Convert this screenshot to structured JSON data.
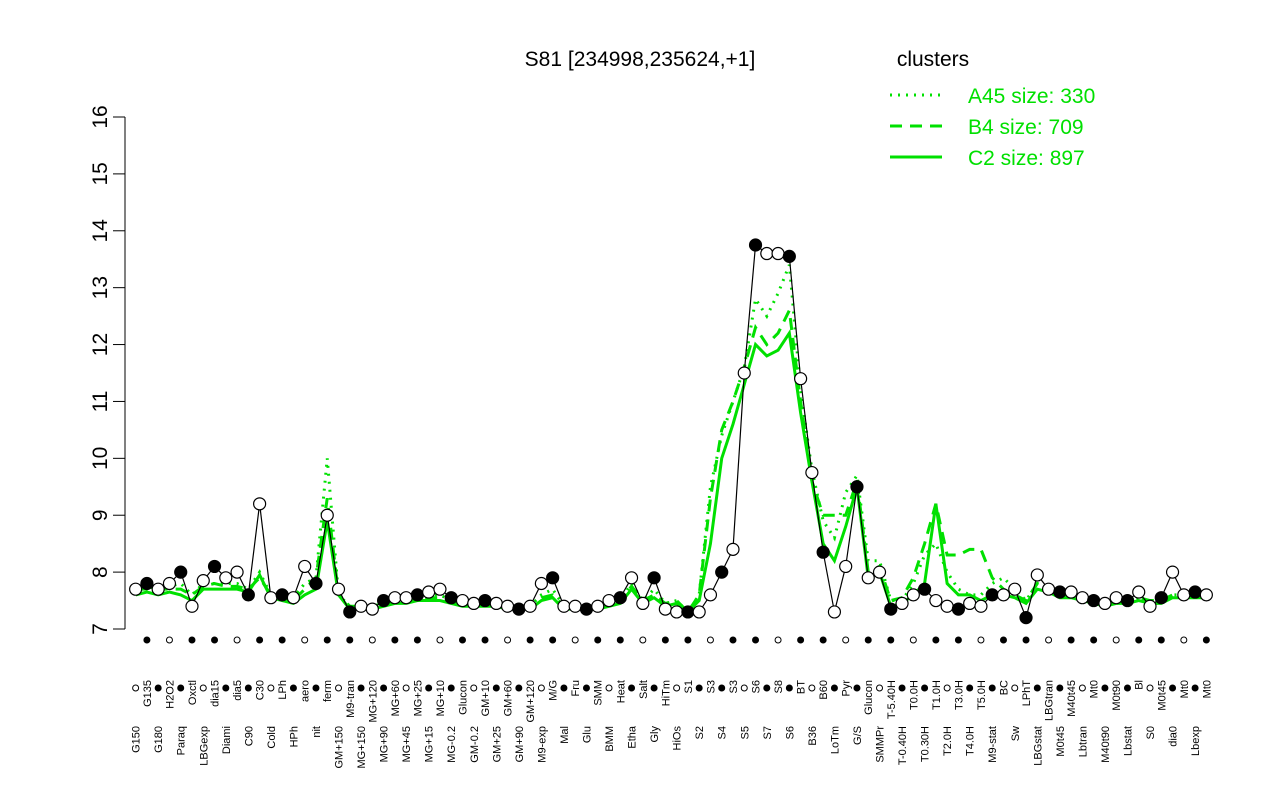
{
  "chart_data": {
    "type": "line",
    "title": "S81 [234998,235624,+1]",
    "categories": [
      "G150",
      "G135",
      "G180",
      "H2O2",
      "Paraq",
      "Oxctl",
      "LBGexp",
      "dia15",
      "Diami",
      "dia5",
      "C90",
      "C30",
      "Cold",
      "LPh",
      "HPh",
      "aero",
      "nit",
      "ferm",
      "GM+150",
      "M9-tran",
      "MG+150",
      "MG+120",
      "MG+90",
      "MG+60",
      "MG+45",
      "MG+25",
      "MG+15",
      "MG+10",
      "MG-0.2",
      "Glucon",
      "GM-0.2",
      "GM+10",
      "GM+25",
      "GM+60",
      "GM+90",
      "GM+120",
      "M9-exp",
      "M/G",
      "Mal",
      "Fru",
      "Glu",
      "SMM",
      "BMM",
      "Heat",
      "Etha",
      "Salt",
      "Gly",
      "HiTm",
      "HiOs",
      "S1",
      "S2",
      "S3",
      "S4",
      "S3",
      "S5",
      "S6",
      "S7",
      "S8",
      "S6",
      "BT",
      "B36",
      "B60",
      "LoTm",
      "Pyr",
      "G/S",
      "Glucon",
      "SMMPr",
      "T-5.40H",
      "T-0.40H",
      "T0.0H",
      "T0.30H",
      "T1.0H",
      "T2.0H",
      "T3.0H",
      "T4.0H",
      "T5.0H",
      "M9-stat",
      "BC",
      "Sw",
      "LPhT",
      "LBGstat",
      "LBGtran",
      "M0t45",
      "M40t45",
      "Lbtran",
      "Mt0",
      "M40t90",
      "M0t90",
      "Lbstat",
      "Bl",
      "S0",
      "M0t45",
      "dia0",
      "Mt0",
      "Lbexp",
      "Mt0"
    ],
    "values": [
      7.7,
      7.8,
      7.7,
      7.8,
      8.0,
      7.4,
      7.85,
      8.1,
      7.9,
      8.0,
      7.6,
      9.2,
      7.55,
      7.6,
      7.55,
      8.1,
      7.8,
      9.0,
      7.7,
      7.3,
      7.4,
      7.35,
      7.5,
      7.55,
      7.55,
      7.6,
      7.65,
      7.7,
      7.55,
      7.5,
      7.45,
      7.5,
      7.45,
      7.4,
      7.35,
      7.4,
      7.8,
      7.9,
      7.4,
      7.4,
      7.35,
      7.4,
      7.5,
      7.55,
      7.9,
      7.45,
      7.9,
      7.35,
      7.3,
      7.3,
      7.3,
      7.6,
      8.0,
      8.4,
      11.5,
      13.75,
      13.6,
      13.6,
      13.55,
      11.4,
      9.75,
      8.35,
      7.3,
      8.1,
      9.5,
      7.9,
      8.0,
      7.35,
      7.45,
      7.6,
      7.7,
      7.5,
      7.4,
      7.35,
      7.45,
      7.4,
      7.6,
      7.6,
      7.7,
      7.2,
      7.95,
      7.7,
      7.65,
      7.65,
      7.55,
      7.5,
      7.45,
      7.55,
      7.5,
      7.65,
      7.4,
      7.55,
      8.0,
      7.6,
      7.65,
      7.6
    ],
    "color": "#000000",
    "legend_title": "clusters",
    "legend_position": "top-right",
    "series": [
      {
        "name": "A45 size: 330",
        "color": "#00e000",
        "style": "dotted",
        "values": [
          7.7,
          7.75,
          7.7,
          7.75,
          7.8,
          7.6,
          7.8,
          7.8,
          7.8,
          7.8,
          7.7,
          8.0,
          7.6,
          7.6,
          7.55,
          7.8,
          7.9,
          10.0,
          7.6,
          7.4,
          7.4,
          7.4,
          7.45,
          7.5,
          7.5,
          7.55,
          7.6,
          7.6,
          7.5,
          7.5,
          7.45,
          7.45,
          7.45,
          7.4,
          7.4,
          7.4,
          7.6,
          7.7,
          7.4,
          7.4,
          7.4,
          7.4,
          7.45,
          7.5,
          7.8,
          7.5,
          7.7,
          7.45,
          7.5,
          7.3,
          7.6,
          9.5,
          10.4,
          11.0,
          11.6,
          12.8,
          12.5,
          12.9,
          13.4,
          11.2,
          9.8,
          8.9,
          8.6,
          9.4,
          9.7,
          8.2,
          8.2,
          7.5,
          7.5,
          7.8,
          8.3,
          8.5,
          8.0,
          7.7,
          7.6,
          7.6,
          7.8,
          7.9,
          7.7,
          7.5,
          7.8,
          7.7,
          7.6,
          7.6,
          7.55,
          7.5,
          7.45,
          7.5,
          7.5,
          7.55,
          7.5,
          7.5,
          7.6,
          7.6,
          7.6,
          7.6
        ]
      },
      {
        "name": "B4 size: 709",
        "color": "#00e000",
        "style": "dashed",
        "values": [
          7.7,
          7.7,
          7.7,
          7.7,
          7.7,
          7.6,
          7.75,
          7.8,
          7.75,
          7.75,
          7.7,
          7.9,
          7.6,
          7.55,
          7.5,
          7.7,
          7.9,
          9.3,
          7.6,
          7.4,
          7.4,
          7.4,
          7.45,
          7.5,
          7.5,
          7.55,
          7.55,
          7.55,
          7.5,
          7.45,
          7.45,
          7.45,
          7.4,
          7.4,
          7.4,
          7.4,
          7.55,
          7.6,
          7.4,
          7.4,
          7.4,
          7.4,
          7.45,
          7.5,
          7.75,
          7.5,
          7.6,
          7.45,
          7.5,
          7.3,
          7.6,
          9.3,
          10.5,
          11.0,
          11.6,
          12.3,
          12.0,
          12.2,
          12.6,
          11.0,
          9.6,
          9.0,
          9.0,
          9.0,
          9.6,
          8.0,
          8.1,
          7.5,
          7.55,
          7.9,
          8.5,
          9.2,
          8.3,
          8.3,
          8.4,
          8.4,
          7.9,
          7.7,
          7.6,
          7.5,
          7.8,
          7.7,
          7.6,
          7.6,
          7.55,
          7.5,
          7.45,
          7.5,
          7.5,
          7.55,
          7.5,
          7.5,
          7.6,
          7.6,
          7.6,
          7.6
        ]
      },
      {
        "name": "C2 size: 897",
        "color": "#00e000",
        "style": "solid",
        "values": [
          7.6,
          7.65,
          7.6,
          7.65,
          7.6,
          7.5,
          7.7,
          7.7,
          7.7,
          7.7,
          7.65,
          7.95,
          7.55,
          7.5,
          7.45,
          7.6,
          7.7,
          8.9,
          7.6,
          7.35,
          7.35,
          7.35,
          7.4,
          7.45,
          7.45,
          7.5,
          7.5,
          7.5,
          7.45,
          7.4,
          7.4,
          7.4,
          7.4,
          7.35,
          7.35,
          7.35,
          7.5,
          7.55,
          7.35,
          7.35,
          7.35,
          7.35,
          7.4,
          7.45,
          7.7,
          7.45,
          7.55,
          7.4,
          7.45,
          7.3,
          7.5,
          8.5,
          10.0,
          10.6,
          11.3,
          12.0,
          11.8,
          11.9,
          12.2,
          10.8,
          9.6,
          8.5,
          8.2,
          8.8,
          9.5,
          7.9,
          8.0,
          7.4,
          7.45,
          7.6,
          7.8,
          9.2,
          7.8,
          7.6,
          7.6,
          7.5,
          7.6,
          7.6,
          7.55,
          7.45,
          7.7,
          7.65,
          7.55,
          7.55,
          7.5,
          7.45,
          7.4,
          7.45,
          7.45,
          7.5,
          7.45,
          7.45,
          7.55,
          7.55,
          7.55,
          7.55
        ]
      }
    ],
    "ylim": [
      7,
      16
    ],
    "yticks": [
      7,
      8,
      9,
      10,
      11,
      12,
      13,
      14,
      15,
      16
    ],
    "grid": false
  }
}
